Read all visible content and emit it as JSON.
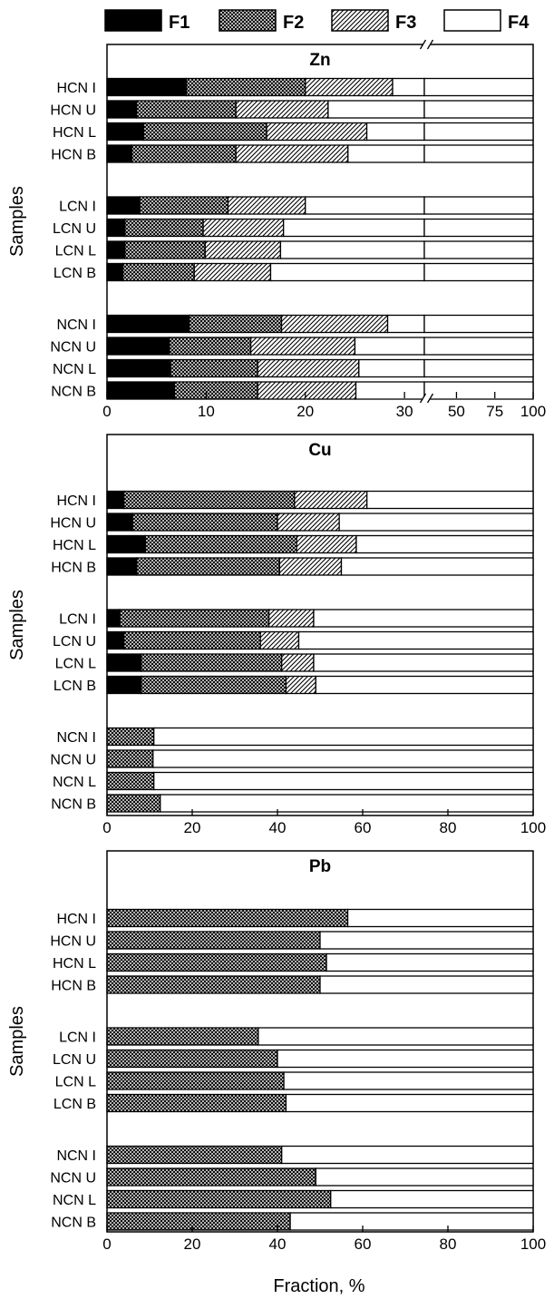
{
  "chart_data": [
    {
      "type": "bar",
      "orientation": "horizontal",
      "stacked": true,
      "title": "Zn",
      "ylabel": "Samples",
      "xlabel": "",
      "broken_axis": true,
      "xlim": [
        0,
        100
      ],
      "x_segments": [
        {
          "range": [
            0,
            32
          ],
          "ticks": [
            0,
            10,
            20,
            30
          ]
        },
        {
          "range": [
            32,
            100
          ],
          "ticks": [
            50,
            75,
            100
          ]
        }
      ],
      "categories": [
        "HCN I",
        "HCN U",
        "HCN L",
        "HCN B",
        "LCN I",
        "LCN U",
        "LCN L",
        "LCN B",
        "NCN I",
        "NCN U",
        "NCN L",
        "NCN B"
      ],
      "groups": [
        4,
        4,
        4
      ],
      "series": [
        {
          "name": "F1",
          "values": [
            8.0,
            3.0,
            3.7,
            2.5,
            3.3,
            1.8,
            1.8,
            1.6,
            8.3,
            6.3,
            6.4,
            6.8
          ]
        },
        {
          "name": "F2",
          "values": [
            12.0,
            10.0,
            12.4,
            10.5,
            8.9,
            7.9,
            8.1,
            7.2,
            9.3,
            8.2,
            8.8,
            8.4
          ]
        },
        {
          "name": "F3",
          "values": [
            8.8,
            9.3,
            10.1,
            11.3,
            7.8,
            8.1,
            7.6,
            7.7,
            10.7,
            10.5,
            10.2,
            9.9
          ]
        },
        {
          "name": "F4",
          "values": [
            71.2,
            77.7,
            73.8,
            75.7,
            80.0,
            82.2,
            82.5,
            83.5,
            71.7,
            75.0,
            74.6,
            74.9
          ]
        }
      ]
    },
    {
      "type": "bar",
      "orientation": "horizontal",
      "stacked": true,
      "title": "Cu",
      "ylabel": "Samples",
      "xlabel": "",
      "xlim": [
        0,
        100
      ],
      "xticks": [
        0,
        20,
        40,
        60,
        80,
        100
      ],
      "categories": [
        "HCN I",
        "HCN U",
        "HCN L",
        "HCN B",
        "LCN I",
        "LCN U",
        "LCN L",
        "LCN B",
        "NCN I",
        "NCN U",
        "NCN L",
        "NCN B"
      ],
      "groups": [
        4,
        4,
        4
      ],
      "series": [
        {
          "name": "F1",
          "values": [
            4.0,
            6.0,
            9.0,
            7.0,
            3.0,
            4.0,
            8.0,
            8.0,
            0,
            0,
            0,
            0
          ]
        },
        {
          "name": "F2",
          "values": [
            40.0,
            34.0,
            35.5,
            33.5,
            35.0,
            32.0,
            33.0,
            34.0,
            11.0,
            10.8,
            11.0,
            12.5
          ]
        },
        {
          "name": "F3",
          "values": [
            17.0,
            14.5,
            14.0,
            14.5,
            10.5,
            9.0,
            7.5,
            7.0,
            0,
            0,
            0,
            0
          ]
        },
        {
          "name": "F4",
          "values": [
            39.0,
            45.5,
            41.5,
            45.0,
            51.5,
            55.0,
            51.5,
            51.0,
            89.0,
            89.2,
            89.0,
            87.5
          ]
        }
      ]
    },
    {
      "type": "bar",
      "orientation": "horizontal",
      "stacked": true,
      "title": "Pb",
      "ylabel": "Samples",
      "xlabel": "Fraction, %",
      "xlim": [
        0,
        100
      ],
      "xticks": [
        0,
        20,
        40,
        60,
        80,
        100
      ],
      "categories": [
        "HCN I",
        "HCN U",
        "HCN L",
        "HCN B",
        "LCN I",
        "LCN U",
        "LCN L",
        "LCN B",
        "NCN I",
        "NCN U",
        "NCN L",
        "NCN B"
      ],
      "groups": [
        4,
        4,
        4
      ],
      "series": [
        {
          "name": "F1",
          "values": [
            0,
            0,
            0,
            0,
            0,
            0,
            0,
            0,
            0,
            0,
            0,
            0
          ]
        },
        {
          "name": "F2",
          "values": [
            56.5,
            50.0,
            51.5,
            50.0,
            35.5,
            40.0,
            41.5,
            42.0,
            41.0,
            49.0,
            52.5,
            43.0
          ]
        },
        {
          "name": "F3",
          "values": [
            0,
            0,
            0,
            0,
            0,
            0,
            0,
            0,
            0,
            0,
            0,
            0
          ]
        },
        {
          "name": "F4",
          "values": [
            43.5,
            50.0,
            48.5,
            50.0,
            64.5,
            60.0,
            58.5,
            58.0,
            59.0,
            51.0,
            47.5,
            57.0
          ]
        }
      ]
    }
  ],
  "legend": {
    "placement": "top",
    "items": [
      {
        "label": "F1",
        "pattern": "solid-black"
      },
      {
        "label": "F2",
        "pattern": "crosshatch"
      },
      {
        "label": "F3",
        "pattern": "diagonal"
      },
      {
        "label": "F4",
        "pattern": "white"
      }
    ]
  }
}
